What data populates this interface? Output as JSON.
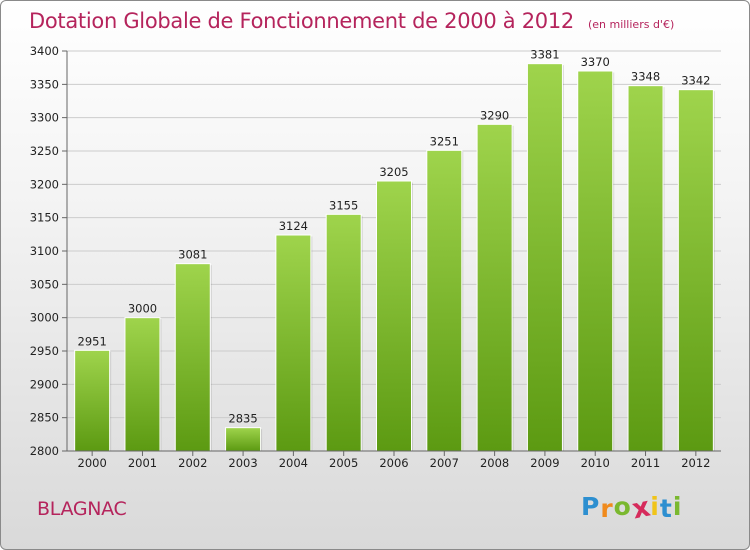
{
  "header": {
    "title": "Dotation Globale de Fonctionnement de 2000 à 2012",
    "subtitle": "(en milliers d'€)"
  },
  "footer": {
    "city": "BLAGNAC",
    "logo_letters": [
      "P",
      "r",
      "o",
      "x",
      "i",
      "t",
      "i"
    ],
    "logo_colors": [
      "#2d8fd0",
      "#f08a1c",
      "#7ab82f",
      "#d62b5c",
      "#f0c419",
      "#2d8fd0",
      "#7ab82f"
    ]
  },
  "colors": {
    "title": "#b5245c",
    "bar_top": "#9fd44c",
    "bar_bottom": "#5c9a12",
    "grid": "#cccccc",
    "axis_text": "#222222"
  },
  "chart_data": {
    "type": "bar",
    "title": "Dotation Globale de Fonctionnement de 2000 à 2012",
    "subtitle": "(en milliers d'€)",
    "categories": [
      "2000",
      "2001",
      "2002",
      "2003",
      "2004",
      "2005",
      "2006",
      "2007",
      "2008",
      "2009",
      "2010",
      "2011",
      "2012"
    ],
    "values": [
      2951,
      3000,
      3081,
      2835,
      3124,
      3155,
      3205,
      3251,
      3290,
      3381,
      3370,
      3348,
      3342
    ],
    "data_labels": [
      "2951",
      "3000",
      "3081",
      "2835",
      "3124",
      "3155",
      "3205",
      "3251",
      "3290",
      "3381",
      "3370",
      "3348",
      "3342"
    ],
    "xlabel": "",
    "ylabel": "",
    "ylim": [
      2800,
      3400
    ],
    "yticks": [
      2800,
      2850,
      2900,
      2950,
      3000,
      3050,
      3100,
      3150,
      3200,
      3250,
      3300,
      3350,
      3400
    ],
    "grid": true,
    "legend": "none"
  }
}
